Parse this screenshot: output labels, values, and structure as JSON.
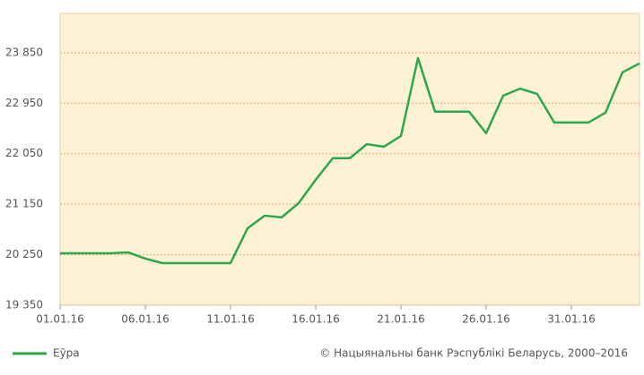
{
  "chart_data": {
    "type": "line",
    "categories": [
      "01.01.16",
      null,
      null,
      null,
      null,
      "06.01.16",
      null,
      null,
      null,
      null,
      "11.01.16",
      null,
      null,
      null,
      null,
      "16.01.16",
      null,
      null,
      null,
      null,
      "21.01.16",
      null,
      null,
      null,
      null,
      "26.01.16",
      null,
      null,
      null,
      null,
      "31.01.16",
      null,
      null,
      null,
      null
    ],
    "series": [
      {
        "name": "Еўра",
        "color": "#2aa84a",
        "values": [
          20276,
          20276,
          20276,
          20276,
          20290,
          20180,
          20100,
          20100,
          20100,
          20100,
          20100,
          20720,
          20946,
          20915,
          21170,
          21585,
          21970,
          21970,
          22220,
          22175,
          22365,
          23755,
          22800,
          22800,
          22800,
          22415,
          23085,
          23210,
          23115,
          22605,
          22605,
          22605,
          22780,
          23500,
          23660
        ]
      }
    ],
    "ylim": [
      19350,
      24550
    ],
    "yticks": [
      {
        "value": 19350,
        "label": "19 350"
      },
      {
        "value": 20250,
        "label": "20 250"
      },
      {
        "value": 21150,
        "label": "21 150"
      },
      {
        "value": 22050,
        "label": "22 050"
      },
      {
        "value": 22950,
        "label": "22 950"
      },
      {
        "value": 23850,
        "label": "23 850"
      }
    ],
    "grid": true,
    "legend": "bottom-left",
    "copyright": "© Нацыянальны банк Рэспублікі Беларусь, 2000–2016"
  }
}
